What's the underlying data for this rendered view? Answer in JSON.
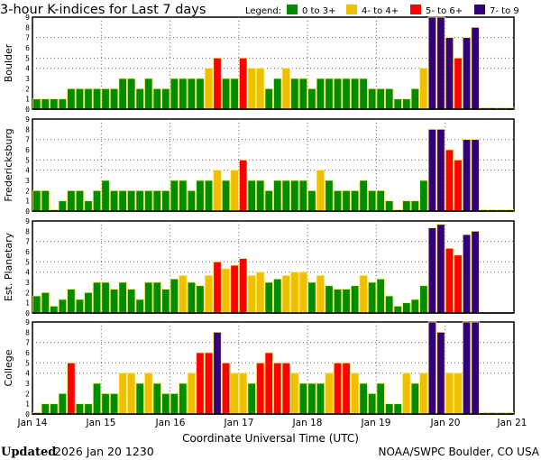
{
  "chart_data": {
    "type": "bar",
    "title": "3-hour K-indices for Last 7 days",
    "legend": {
      "label": "Legend:",
      "entries": [
        {
          "label": "0 to 3+",
          "color": "#008c00"
        },
        {
          "label": "4- to 4+",
          "color": "#f0c000"
        },
        {
          "label": "5- to 6+",
          "color": "#ff0000"
        },
        {
          "label": "7- to 9",
          "color": "#330077"
        }
      ],
      "placement": "top-right"
    },
    "xlabel": "Coordinate Universal Time (UTC)",
    "x_tick_labels": [
      "Jan 14",
      "Jan 15",
      "Jan 16",
      "Jan 17",
      "Jan 18",
      "Jan 19",
      "Jan 20",
      "Jan 21"
    ],
    "bars_per_day": 8,
    "ylim": [
      0,
      9
    ],
    "y_tick_labels": [
      "0",
      "1",
      "2",
      "3",
      "4",
      "5",
      "6",
      "7",
      "8",
      "9"
    ],
    "gridlines": {
      "horizontal_at": [
        4,
        5,
        7
      ],
      "vertical": "each day",
      "style": "dotted"
    },
    "bar_outline_color": "#ffee66",
    "panels": [
      {
        "name": "Boulder",
        "values": [
          1,
          1,
          1,
          1,
          2,
          2,
          2,
          2,
          2,
          2,
          3,
          3,
          2,
          3,
          2,
          2,
          3,
          3,
          3,
          3,
          4,
          5,
          3,
          3,
          5,
          4,
          4,
          2,
          3,
          4,
          3,
          3,
          2,
          3,
          3,
          3,
          3,
          3,
          3,
          2,
          2,
          2,
          1,
          1,
          2,
          4,
          9,
          9,
          7,
          5,
          7,
          8,
          0,
          0,
          0,
          0
        ]
      },
      {
        "name": "Fredericksburg",
        "values": [
          2,
          2,
          0,
          1,
          2,
          2,
          1,
          2,
          3,
          2,
          2,
          2,
          2,
          2,
          2,
          2,
          3,
          3,
          2,
          3,
          3,
          4,
          3,
          4,
          5,
          3,
          3,
          2,
          3,
          3,
          3,
          3,
          2,
          4,
          3,
          2,
          2,
          2,
          3,
          2,
          2,
          1,
          0,
          1,
          1,
          3,
          8,
          8,
          6,
          5,
          7,
          7,
          0,
          0,
          0,
          0
        ]
      },
      {
        "name": "Est. Planetary",
        "values": [
          1.67,
          2,
          0.67,
          1.33,
          2.33,
          1.33,
          2,
          3,
          3,
          2.33,
          3,
          2.33,
          1.33,
          3,
          3,
          2.33,
          3.33,
          3.67,
          3,
          2.67,
          3.67,
          5,
          4.33,
          4.67,
          5.33,
          3.67,
          4,
          3,
          3.33,
          3.67,
          4,
          4,
          3,
          3.67,
          2.67,
          2.33,
          2.33,
          2.67,
          3.67,
          3,
          3.33,
          1.67,
          0.67,
          1,
          1.33,
          2.67,
          8.33,
          8.67,
          6.33,
          5.67,
          7.67,
          8,
          null,
          null,
          null,
          null
        ]
      },
      {
        "name": "College",
        "values": [
          0,
          1,
          1,
          2,
          5,
          1,
          1,
          3,
          2,
          2,
          4,
          4,
          3,
          4,
          3,
          2,
          2,
          3,
          4,
          6,
          6,
          8,
          5,
          4,
          4,
          3,
          5,
          6,
          5,
          5,
          4,
          3,
          3,
          3,
          4,
          5,
          5,
          4,
          3,
          2,
          3,
          1,
          1,
          4,
          3,
          4,
          9,
          8,
          4,
          4,
          9,
          9,
          0,
          0,
          0,
          0
        ]
      }
    ]
  },
  "footer": {
    "updated_label": "Updated",
    "updated_value": "2026 Jan 20 1230",
    "source": "NOAA/SWPC Boulder, CO USA"
  }
}
